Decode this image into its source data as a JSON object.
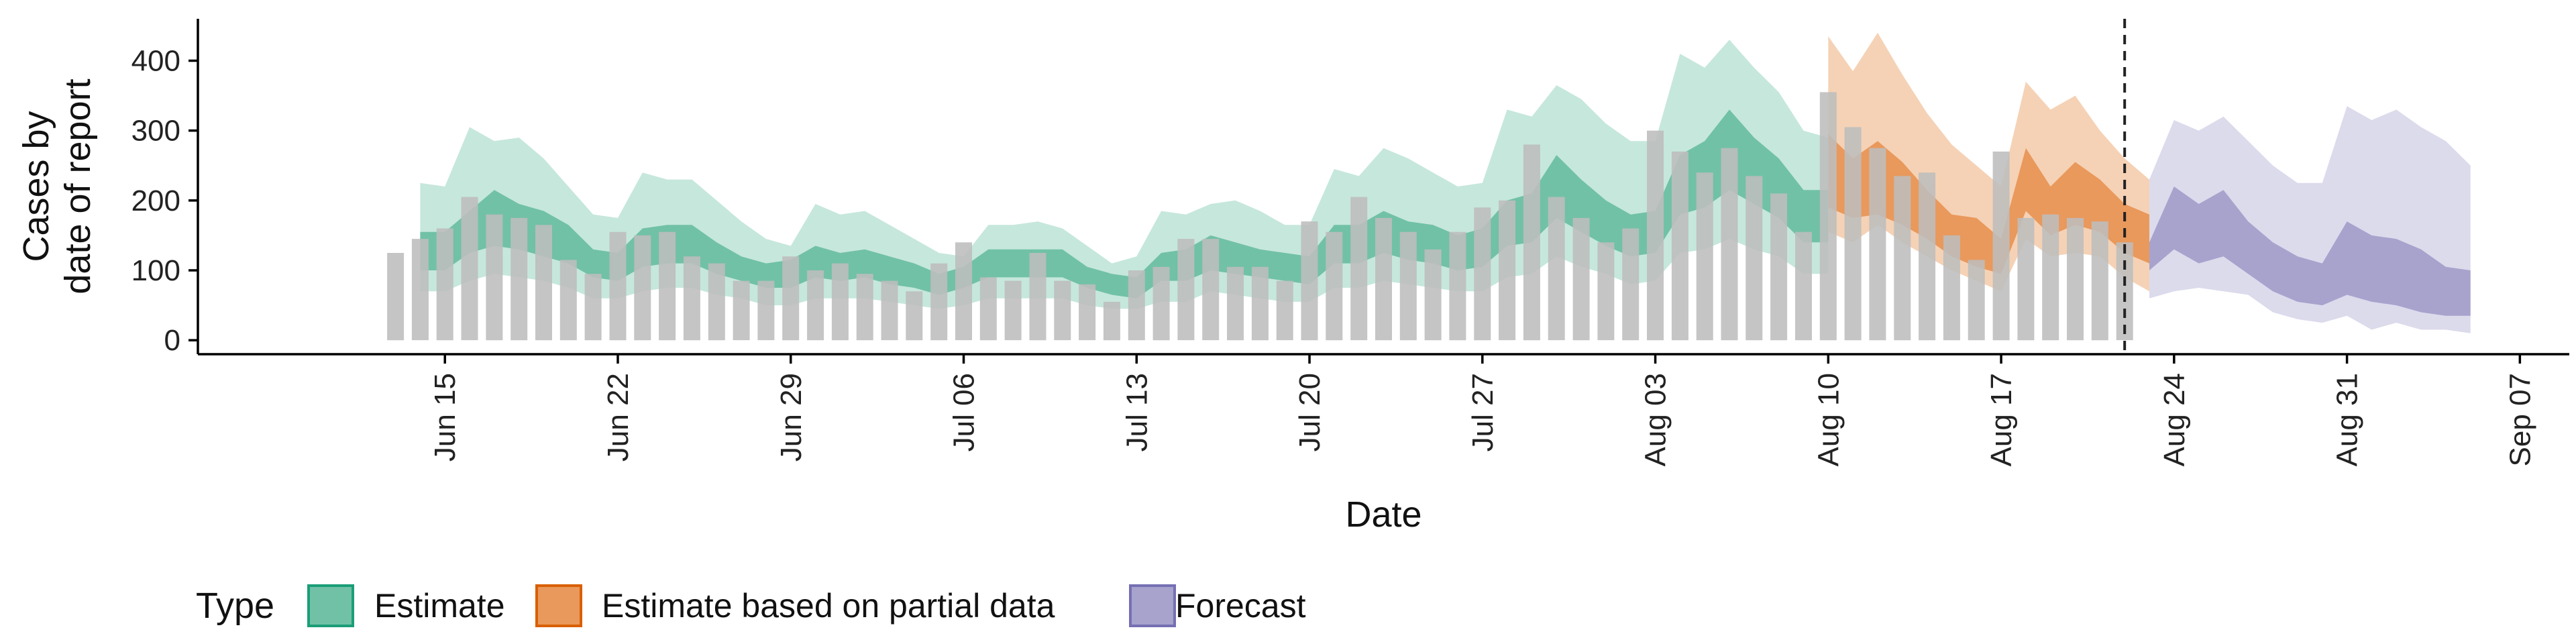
{
  "chart_data": {
    "type": "bar",
    "xlabel": "Date",
    "ylabel_lines": [
      "Cases by",
      "date of report"
    ],
    "ylim": [
      -20,
      460
    ],
    "xlim_dates": [
      "2020-06-05",
      "2020-09-09"
    ],
    "y_ticks": [
      0,
      100,
      200,
      300,
      400
    ],
    "y_tick_labels": [
      "0",
      "100",
      "200",
      "300",
      "400"
    ],
    "x_ticks": [
      "2020-06-15",
      "2020-06-22",
      "2020-06-29",
      "2020-07-06",
      "2020-07-13",
      "2020-07-20",
      "2020-07-27",
      "2020-08-03",
      "2020-08-10",
      "2020-08-17",
      "2020-08-24",
      "2020-08-31",
      "2020-09-07"
    ],
    "x_tick_labels": [
      "Jun 15",
      "Jun 22",
      "Jun 29",
      "Jul 06",
      "Jul 13",
      "Jul 20",
      "Jul 27",
      "Aug 03",
      "Aug 10",
      "Aug 17",
      "Aug 24",
      "Aug 31",
      "Sep 07"
    ],
    "forecast_start_date": "2020-08-22",
    "grid": false,
    "legend": {
      "title": "Type",
      "position": "bottom-left",
      "entries": [
        {
          "label": "Estimate",
          "fill": "#71c1a6",
          "stroke": "#1b9e77"
        },
        {
          "label": "Estimate based on partial data",
          "fill": "#e9995c",
          "stroke": "#d95f02"
        },
        {
          "label": "Forecast",
          "fill": "#a7a3cd",
          "stroke": "#7570b3"
        }
      ]
    },
    "colors": {
      "bars": "#bdbdbd",
      "estimate_outer": "#c6e7dc",
      "estimate_inner": "#71c1a6",
      "partial_outer": "#f5d2b6",
      "partial_inner": "#e9995c",
      "forecast_outer": "#dcdbec",
      "forecast_inner": "#a7a3cd"
    },
    "bars": {
      "start_date": "2020-06-13",
      "values": [
        125,
        145,
        160,
        205,
        180,
        175,
        165,
        115,
        95,
        155,
        150,
        155,
        120,
        110,
        85,
        85,
        120,
        100,
        110,
        95,
        85,
        70,
        110,
        140,
        90,
        85,
        125,
        85,
        80,
        55,
        100,
        105,
        145,
        145,
        105,
        105,
        85,
        170,
        155,
        205,
        175,
        155,
        130,
        155,
        190,
        200,
        280,
        205,
        175,
        140,
        160,
        300,
        270,
        240,
        275,
        235,
        210,
        155,
        355,
        305,
        275,
        235,
        240,
        150,
        115,
        270,
        175,
        180,
        175,
        170,
        140
      ]
    },
    "series": [
      {
        "type": "Estimate",
        "start_date": "2020-06-14",
        "outer_upper": [
          225,
          220,
          305,
          285,
          290,
          260,
          220,
          180,
          175,
          240,
          230,
          230,
          200,
          170,
          145,
          135,
          195,
          180,
          185,
          165,
          145,
          125,
          120,
          165,
          165,
          170,
          160,
          135,
          110,
          120,
          185,
          180,
          195,
          200,
          185,
          165,
          165,
          245,
          235,
          275,
          260,
          240,
          220,
          225,
          330,
          320,
          365,
          345,
          310,
          285,
          285,
          410,
          390,
          430,
          390,
          355,
          300,
          290
        ],
        "inner_upper": [
          155,
          155,
          185,
          215,
          195,
          185,
          165,
          130,
          125,
          160,
          165,
          165,
          140,
          120,
          110,
          115,
          135,
          125,
          130,
          120,
          110,
          95,
          105,
          130,
          130,
          130,
          130,
          105,
          95,
          90,
          125,
          130,
          150,
          140,
          130,
          125,
          120,
          165,
          165,
          185,
          170,
          165,
          150,
          160,
          200,
          210,
          265,
          230,
          200,
          180,
          185,
          265,
          285,
          330,
          290,
          260,
          215,
          215
        ],
        "inner_lower": [
          100,
          100,
          125,
          135,
          130,
          120,
          110,
          90,
          85,
          105,
          110,
          110,
          95,
          85,
          75,
          75,
          90,
          85,
          90,
          80,
          75,
          65,
          75,
          90,
          90,
          90,
          90,
          75,
          65,
          60,
          85,
          85,
          100,
          95,
          90,
          85,
          80,
          110,
          110,
          125,
          115,
          110,
          100,
          105,
          135,
          140,
          175,
          155,
          135,
          120,
          125,
          180,
          190,
          215,
          195,
          175,
          140,
          140
        ],
        "outer_lower": [
          70,
          70,
          85,
          95,
          90,
          85,
          75,
          60,
          60,
          70,
          75,
          75,
          65,
          60,
          50,
          50,
          60,
          60,
          60,
          55,
          50,
          45,
          50,
          60,
          60,
          60,
          60,
          50,
          45,
          45,
          55,
          55,
          70,
          65,
          60,
          55,
          55,
          75,
          75,
          85,
          80,
          75,
          70,
          70,
          90,
          95,
          120,
          105,
          95,
          80,
          85,
          125,
          130,
          145,
          130,
          120,
          95,
          95
        ]
      },
      {
        "type": "Estimate based on partial data",
        "start_date": "2020-08-10",
        "outer_upper": [
          435,
          385,
          440,
          380,
          325,
          280,
          250,
          220,
          370,
          330,
          350,
          300,
          260,
          230
        ],
        "inner_upper": [
          295,
          260,
          285,
          255,
          215,
          180,
          175,
          145,
          275,
          220,
          255,
          230,
          195,
          180
        ],
        "inner_lower": [
          190,
          175,
          180,
          165,
          145,
          120,
          105,
          95,
          185,
          150,
          165,
          155,
          125,
          110
        ],
        "outer_lower": [
          155,
          140,
          165,
          140,
          120,
          100,
          85,
          70,
          145,
          120,
          125,
          120,
          90,
          70
        ]
      },
      {
        "type": "Forecast",
        "start_date": "2020-08-23",
        "outer_upper": [
          230,
          315,
          300,
          320,
          285,
          250,
          225,
          225,
          335,
          315,
          330,
          305,
          285,
          250
        ],
        "inner_upper": [
          140,
          220,
          195,
          215,
          170,
          140,
          120,
          110,
          170,
          150,
          145,
          130,
          105,
          100
        ],
        "inner_lower": [
          100,
          130,
          110,
          120,
          95,
          70,
          55,
          50,
          65,
          55,
          50,
          40,
          35,
          35
        ],
        "outer_lower": [
          60,
          70,
          75,
          70,
          65,
          40,
          30,
          25,
          35,
          15,
          25,
          15,
          15,
          10
        ]
      }
    ]
  }
}
